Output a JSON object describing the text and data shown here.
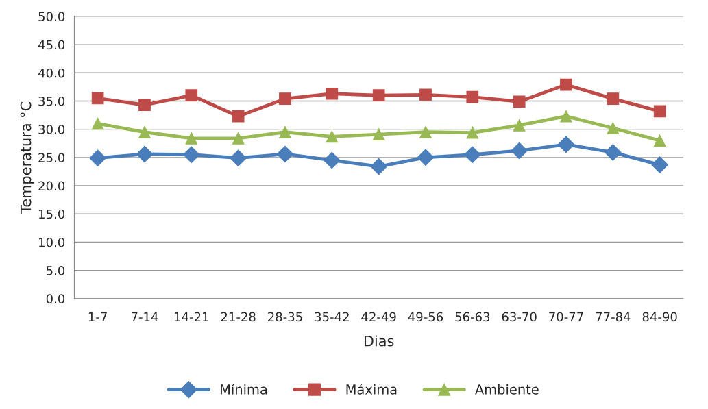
{
  "chart_data": {
    "type": "line",
    "xlabel": "Dias",
    "ylabel": "Temperatura °C",
    "categories": [
      "1-7",
      "7-14",
      "14-21",
      "21-28",
      "28-35",
      "35-42",
      "42-49",
      "49-56",
      "56-63",
      "63-70",
      "70-77",
      "77-84",
      "84-90"
    ],
    "series": [
      {
        "name": "Mínima",
        "color": "#4a7ebb",
        "marker": "diamond",
        "values": [
          24.9,
          25.6,
          25.5,
          24.9,
          25.6,
          24.5,
          23.4,
          25.0,
          25.5,
          26.2,
          27.3,
          25.9,
          23.7
        ]
      },
      {
        "name": "Máxima",
        "color": "#be4b48",
        "marker": "square",
        "values": [
          35.5,
          34.3,
          36.0,
          32.3,
          35.4,
          36.3,
          36.0,
          36.1,
          35.7,
          34.9,
          37.9,
          35.4,
          33.2
        ]
      },
      {
        "name": "Ambiente",
        "color": "#98b954",
        "marker": "triangle",
        "values": [
          31.0,
          29.5,
          28.4,
          28.4,
          29.5,
          28.7,
          29.1,
          29.5,
          29.4,
          30.7,
          32.3,
          30.2,
          28.0
        ]
      }
    ],
    "ylim": [
      0,
      50
    ],
    "yticks": [
      {
        "value": 0,
        "label": "0.0"
      },
      {
        "value": 5,
        "label": "5.0"
      },
      {
        "value": 10,
        "label": "10.0"
      },
      {
        "value": 15,
        "label": "15.0"
      },
      {
        "value": 20,
        "label": "20.0"
      },
      {
        "value": 25,
        "label": "25.0"
      },
      {
        "value": 30,
        "label": "30.0"
      },
      {
        "value": 35,
        "label": "35.0"
      },
      {
        "value": 40,
        "label": "40.0"
      },
      {
        "value": 45,
        "label": "45.0"
      },
      {
        "value": 50,
        "label": "50.0"
      }
    ],
    "grid": "y",
    "legend": "bottom",
    "line_style": "solid"
  }
}
